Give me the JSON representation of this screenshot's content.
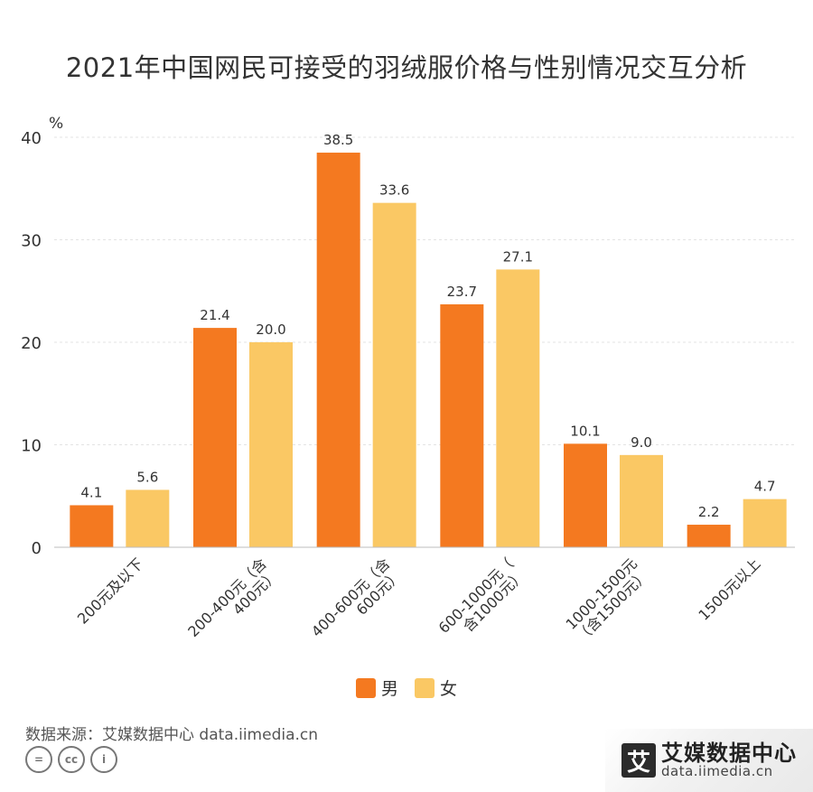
{
  "title": "2021年中国网民可接受的羽绒服价格与性别情况交互分析",
  "chart_data": {
    "type": "bar",
    "title": "2021年中国网民可接受的羽绒服价格与性别情况交互分析",
    "ylabel": "%",
    "xlabel": "",
    "ylim": [
      0,
      40
    ],
    "yticks": [
      0,
      10,
      20,
      30,
      40
    ],
    "grid": true,
    "legend_position": "bottom",
    "categories": [
      [
        "200元及以下"
      ],
      [
        "200-400元（含",
        "400元）"
      ],
      [
        "400-600元（含",
        "600元）"
      ],
      [
        "600-1000元（",
        "含1000元）"
      ],
      [
        "1000-1500元",
        "（含1500元）"
      ],
      [
        "1500元以上"
      ]
    ],
    "series": [
      {
        "name": "男",
        "color": "#F47920",
        "values": [
          4.1,
          21.4,
          38.5,
          23.7,
          10.1,
          2.2
        ]
      },
      {
        "name": "女",
        "color": "#FAC864",
        "values": [
          5.6,
          20.0,
          33.6,
          27.1,
          9.0,
          4.7
        ]
      }
    ]
  },
  "legend": {
    "male": "男",
    "female": "女"
  },
  "source": "数据来源：艾媒数据中心 data.iimedia.cn",
  "brand": {
    "logo_char": "艾",
    "name_cn": "艾媒数据中心",
    "name_en": "data.iimedia.cn"
  },
  "cc_icons": [
    "=",
    "cc",
    "i"
  ]
}
